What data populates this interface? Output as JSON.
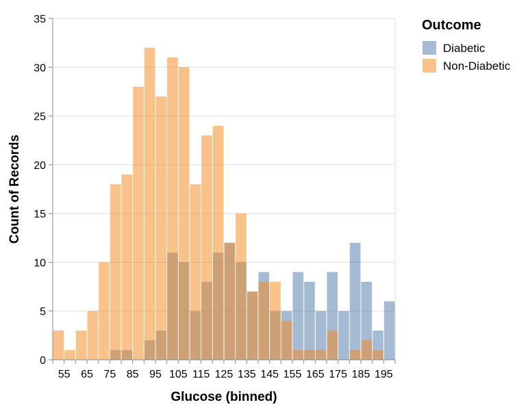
{
  "chart_data": {
    "type": "bar",
    "xlabel": "Glucose (binned)",
    "ylabel": "Count of Records",
    "xlim": [
      50,
      200
    ],
    "ylim": [
      0,
      35
    ],
    "bin_width": 5,
    "x_ticks": [
      55,
      65,
      75,
      85,
      95,
      105,
      115,
      125,
      135,
      145,
      155,
      165,
      175,
      185,
      195
    ],
    "y_ticks": [
      0,
      5,
      10,
      15,
      20,
      25,
      30,
      35
    ],
    "grid": true,
    "legend": {
      "title": "Outcome",
      "placement": "right"
    },
    "overlay": true,
    "series": [
      {
        "name": "Diabetic",
        "color": "#4c78a8",
        "opacity": 0.5,
        "bins": [
          [
            75,
            1
          ],
          [
            80,
            1
          ],
          [
            90,
            2
          ],
          [
            95,
            3
          ],
          [
            100,
            11
          ],
          [
            105,
            10
          ],
          [
            110,
            5
          ],
          [
            115,
            8
          ],
          [
            120,
            11
          ],
          [
            125,
            12
          ],
          [
            130,
            10
          ],
          [
            135,
            7
          ],
          [
            140,
            9
          ],
          [
            145,
            5
          ],
          [
            150,
            5
          ],
          [
            155,
            9
          ],
          [
            160,
            8
          ],
          [
            165,
            5
          ],
          [
            170,
            9
          ],
          [
            175,
            5
          ],
          [
            180,
            12
          ],
          [
            185,
            8
          ],
          [
            190,
            3
          ],
          [
            195,
            6
          ]
        ]
      },
      {
        "name": "Non-Diabetic",
        "color": "#f58518",
        "opacity": 0.5,
        "bins": [
          [
            50,
            3
          ],
          [
            55,
            1
          ],
          [
            60,
            3
          ],
          [
            65,
            5
          ],
          [
            70,
            10
          ],
          [
            75,
            18
          ],
          [
            80,
            19
          ],
          [
            85,
            28
          ],
          [
            90,
            32
          ],
          [
            95,
            27
          ],
          [
            100,
            31
          ],
          [
            105,
            30
          ],
          [
            110,
            18
          ],
          [
            115,
            23
          ],
          [
            120,
            24
          ],
          [
            125,
            12
          ],
          [
            130,
            15
          ],
          [
            135,
            7
          ],
          [
            140,
            8
          ],
          [
            145,
            8
          ],
          [
            150,
            4
          ],
          [
            155,
            1
          ],
          [
            160,
            1
          ],
          [
            165,
            1
          ],
          [
            170,
            3
          ],
          [
            175,
            0
          ],
          [
            180,
            1
          ],
          [
            185,
            2
          ],
          [
            190,
            1
          ]
        ]
      }
    ]
  }
}
